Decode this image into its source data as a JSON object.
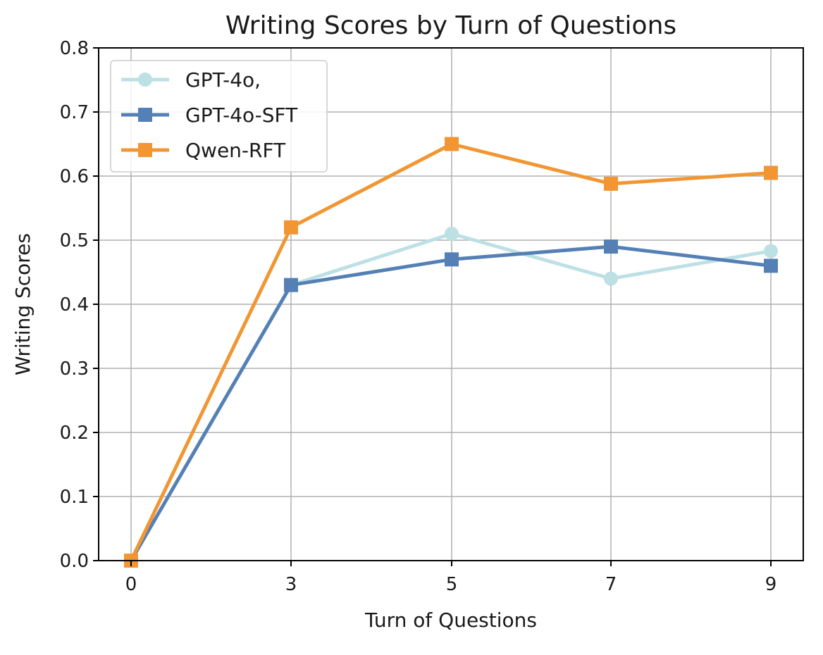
{
  "chart_data": {
    "type": "line",
    "title": "Writing Scores by Turn of Questions",
    "xlabel": "Turn of Questions",
    "ylabel": "Writing Scores",
    "categories": [
      "0",
      "3",
      "5",
      "7",
      "9"
    ],
    "ylim": [
      0.0,
      0.8
    ],
    "yticks": [
      "0.0",
      "0.1",
      "0.2",
      "0.3",
      "0.4",
      "0.5",
      "0.6",
      "0.7",
      "0.8"
    ],
    "grid": true,
    "legend_position": "top-left",
    "series": [
      {
        "name": "GPT-4o,",
        "color": "#bde0e5",
        "marker": "circle",
        "values": [
          0.0,
          0.43,
          0.51,
          0.44,
          0.483
        ]
      },
      {
        "name": "GPT-4o-SFT",
        "color": "#5480b5",
        "marker": "square",
        "values": [
          0.0,
          0.43,
          0.47,
          0.49,
          0.46
        ]
      },
      {
        "name": "Qwen-RFT",
        "color": "#f19633",
        "marker": "square",
        "values": [
          0.0,
          0.52,
          0.65,
          0.588,
          0.605
        ]
      }
    ]
  }
}
